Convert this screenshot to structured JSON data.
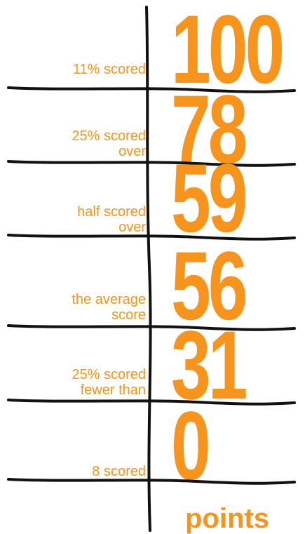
{
  "rows": [
    {
      "label": [
        "11% scored"
      ],
      "value": 100
    },
    {
      "label": [
        "25% scored",
        "over"
      ],
      "value": 78
    },
    {
      "label": [
        "half scored",
        "over"
      ],
      "value": 59
    },
    {
      "label": [
        "the average",
        "score"
      ],
      "value": 56
    },
    {
      "label": [
        "25% scored",
        "fewer than"
      ],
      "value": 31
    },
    {
      "label": [
        "8 scored"
      ],
      "value": 0
    }
  ],
  "unit": "points"
}
